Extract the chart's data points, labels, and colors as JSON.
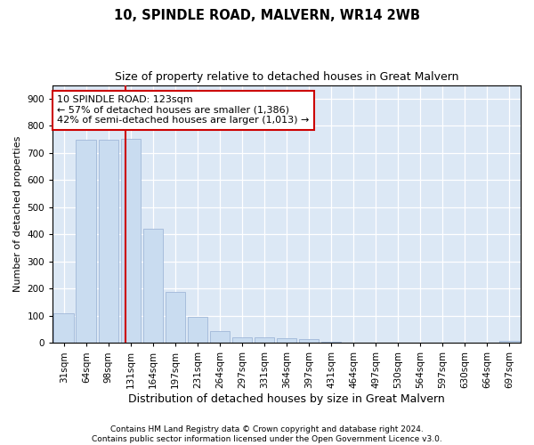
{
  "title1": "10, SPINDLE ROAD, MALVERN, WR14 2WB",
  "title2": "Size of property relative to detached houses in Great Malvern",
  "xlabel": "Distribution of detached houses by size in Great Malvern",
  "ylabel": "Number of detached properties",
  "categories": [
    "31sqm",
    "64sqm",
    "98sqm",
    "131sqm",
    "164sqm",
    "197sqm",
    "231sqm",
    "264sqm",
    "297sqm",
    "331sqm",
    "364sqm",
    "397sqm",
    "431sqm",
    "464sqm",
    "497sqm",
    "530sqm",
    "564sqm",
    "597sqm",
    "630sqm",
    "664sqm",
    "697sqm"
  ],
  "values": [
    110,
    748,
    750,
    752,
    420,
    188,
    95,
    44,
    22,
    22,
    18,
    14,
    5,
    1,
    1,
    0,
    0,
    0,
    0,
    0,
    8
  ],
  "bar_color": "#c9dcf0",
  "bar_edge_color": "#a0b8d8",
  "annotation_line1": "10 SPINDLE ROAD: 123sqm",
  "annotation_line2": "← 57% of detached houses are smaller (1,386)",
  "annotation_line3": "42% of semi-detached houses are larger (1,013) →",
  "annotation_box_color": "#ffffff",
  "annotation_box_edge_color": "#cc0000",
  "ylim": [
    0,
    950
  ],
  "yticks": [
    0,
    100,
    200,
    300,
    400,
    500,
    600,
    700,
    800,
    900
  ],
  "background_color": "#dce8f5",
  "grid_color": "#ffffff",
  "footer1": "Contains HM Land Registry data © Crown copyright and database right 2024.",
  "footer2": "Contains public sector information licensed under the Open Government Licence v3.0.",
  "title1_fontsize": 10.5,
  "title2_fontsize": 9,
  "xlabel_fontsize": 9,
  "ylabel_fontsize": 8,
  "tick_fontsize": 7.5,
  "annot_fontsize": 8,
  "footer_fontsize": 6.5
}
